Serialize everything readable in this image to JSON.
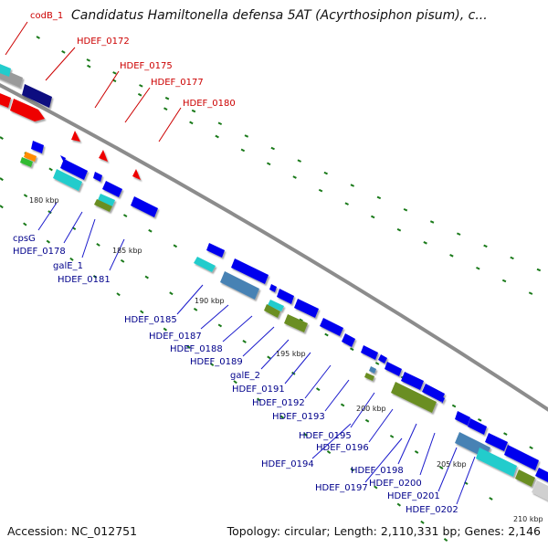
{
  "title": "Candidatus Hamiltonella defensa 5AT (Acyrthosiphon pisum), c...",
  "footer": {
    "accession": "Accession: NC_012751",
    "topology": "Topology: circular; Length: 2,110,331 bp; Genes: 2,146"
  },
  "colors": {
    "backbone": "#8c8c8c",
    "cds": "#0000ee",
    "rna": "#22cccc",
    "steelblue": "#4682b4",
    "olive": "#6b8e23",
    "red": "#ee0000",
    "green_tick": "#1a7a1a",
    "label_red": "#cc0000",
    "label_blue": "#00008b"
  },
  "top_labels": [
    "codB_1",
    "HDEF_0172",
    "HDEF_0175",
    "HDEF_0177",
    "HDEF_0180"
  ],
  "bottom_labels": [
    "cpsG",
    "HDEF_0178",
    "galE_1",
    "HDEF_0181",
    "HDEF_0185",
    "HDEF_0187",
    "HDEF_0188",
    "HDEF_0189",
    "galE_2",
    "HDEF_0191",
    "HDEF_0192",
    "HDEF_0193",
    "HDEF_0195",
    "HDEF_0196",
    "HDEF_0194",
    "HDEF_0198",
    "HDEF_0197",
    "HDEF_0200",
    "HDEF_0201",
    "HDEF_0202"
  ],
  "ticks": [
    "180 kbp",
    "185 kbp",
    "190 kbp",
    "195 kbp",
    "200 kbp",
    "205 kbp",
    "210 kbp"
  ]
}
